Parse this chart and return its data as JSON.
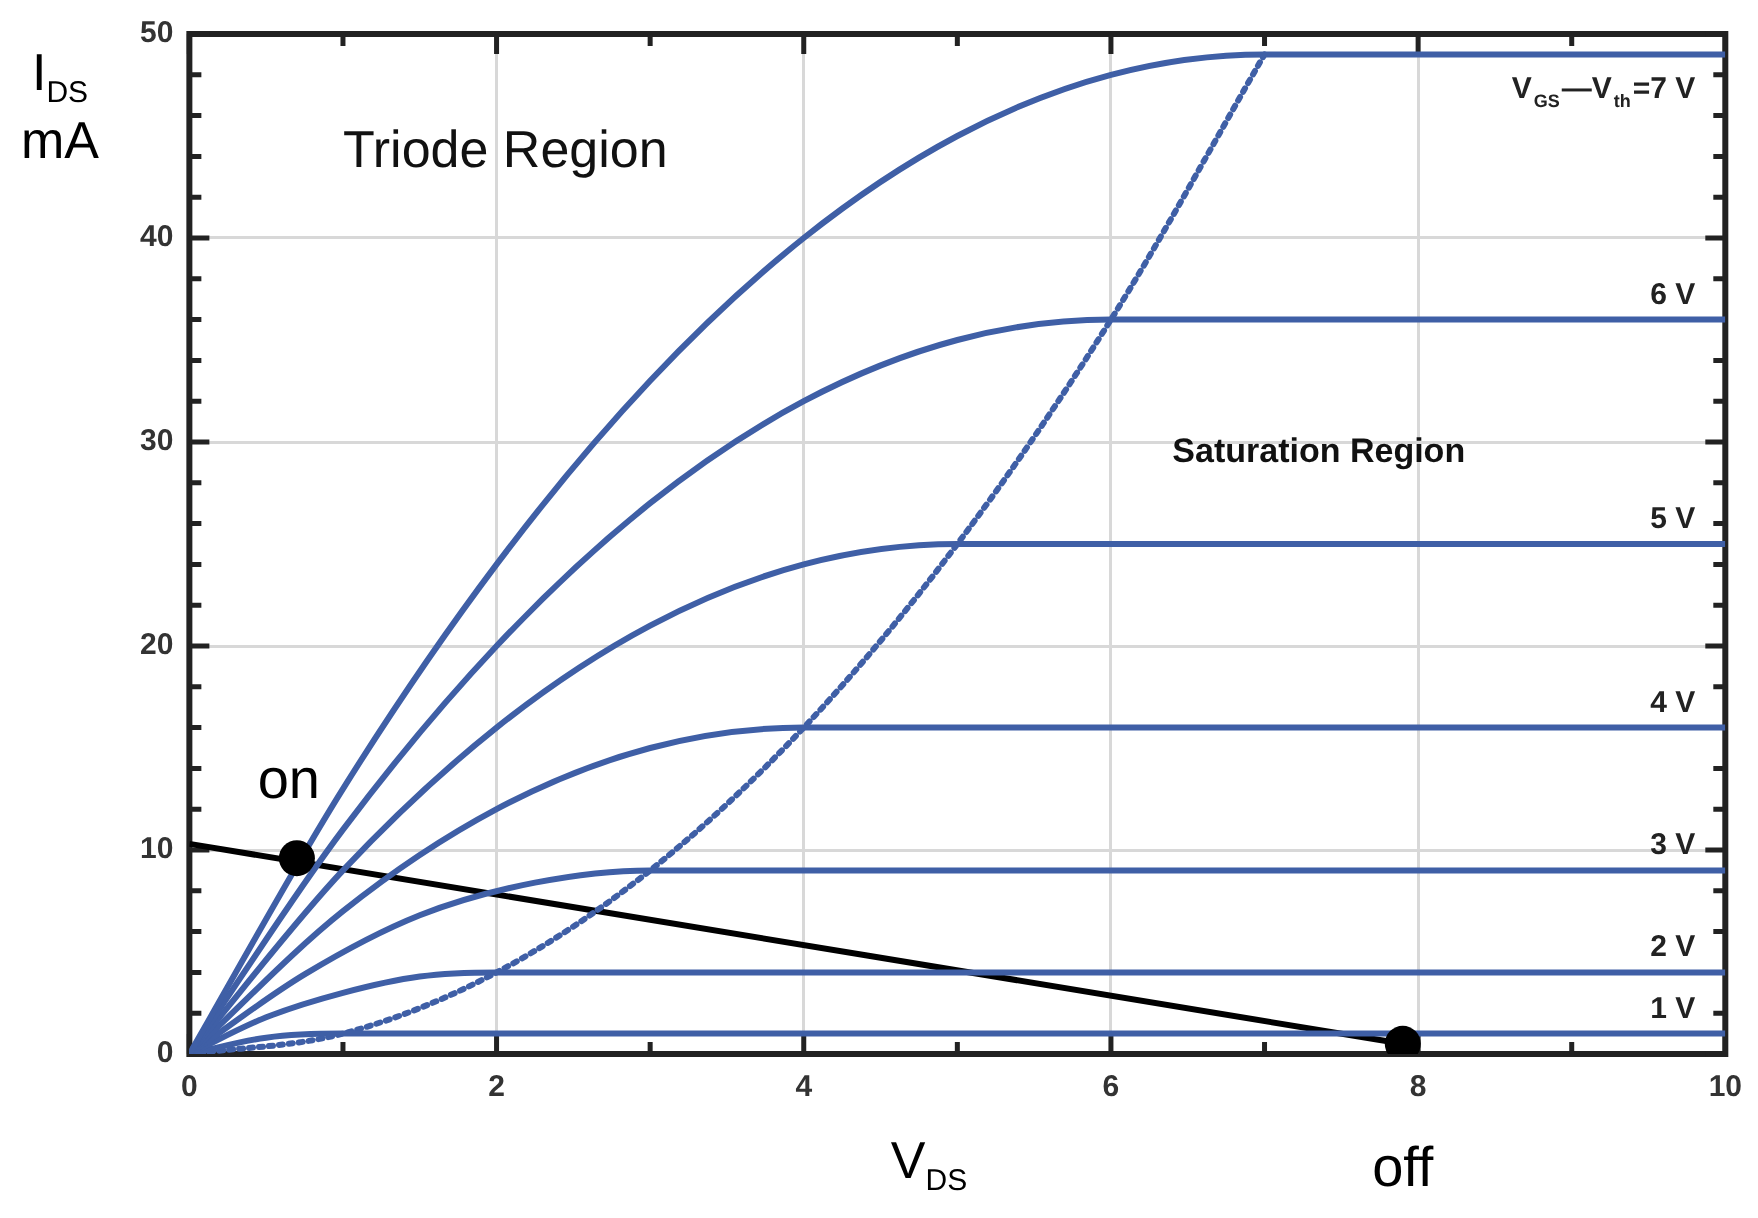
{
  "chart_data": {
    "type": "line",
    "xlabel": "V$_{DS}$",
    "ylabel": "I$_{DS}$ mA",
    "xlim": [
      0,
      10
    ],
    "ylim": [
      0,
      50
    ],
    "xticks": [
      0,
      {
        "value": 1,
        "label": null
      },
      2,
      {
        "value": 3,
        "label": null
      },
      4,
      {
        "value": 5,
        "label": null
      },
      6,
      {
        "value": 7,
        "label": null
      },
      8,
      {
        "value": 9,
        "label": null
      },
      10
    ],
    "yticks": [
      0,
      {
        "value": 2,
        "label": null
      },
      {
        "value": 4,
        "label": null
      },
      {
        "value": 6,
        "label": null
      },
      {
        "value": 8,
        "label": null
      },
      10,
      {
        "value": 12,
        "label": null
      },
      {
        "value": 14,
        "label": null
      },
      {
        "value": 16,
        "label": null
      },
      {
        "value": 18,
        "label": null
      },
      20,
      {
        "value": 22,
        "label": null
      },
      {
        "value": 24,
        "label": null
      },
      {
        "value": 26,
        "label": null
      },
      {
        "value": 28,
        "label": null
      },
      30,
      {
        "value": 32,
        "label": null
      },
      {
        "value": 34,
        "label": null
      },
      {
        "value": 36,
        "label": null
      },
      {
        "value": 38,
        "label": null
      },
      40,
      {
        "value": 42,
        "label": null
      },
      {
        "value": 44,
        "label": null
      },
      {
        "value": 46,
        "label": null
      },
      {
        "value": 48,
        "label": null
      },
      50
    ],
    "grid": true,
    "legend": false,
    "marker": "none",
    "line_style": "solid",
    "series": [
      {
        "name": "V$_{GS}$—V$_{th}$=7 V",
        "color": "#3f5fa6",
        "x": [
          0,
          1,
          2,
          3,
          4,
          5,
          6,
          7,
          10
        ],
        "values": [
          0,
          13,
          24,
          33,
          40,
          45,
          48,
          49,
          49
        ]
      },
      {
        "name": "6 V",
        "color": "#3f5fa6",
        "x": [
          0,
          1,
          2,
          3,
          4,
          5,
          6,
          10
        ],
        "values": [
          0,
          11,
          20,
          27,
          32,
          35,
          36,
          36
        ]
      },
      {
        "name": "5 V",
        "color": "#3f5fa6",
        "x": [
          0,
          1,
          2,
          3,
          4,
          5,
          10
        ],
        "values": [
          0,
          9,
          16,
          21,
          24,
          25,
          25
        ]
      },
      {
        "name": "4 V",
        "color": "#3f5fa6",
        "x": [
          0,
          1,
          2,
          3,
          4,
          10
        ],
        "values": [
          0,
          7,
          12,
          15,
          16,
          16
        ]
      },
      {
        "name": "3 V",
        "color": "#3f5fa6",
        "x": [
          0,
          0.75,
          1.5,
          2.25,
          3,
          10
        ],
        "values": [
          0,
          3.9,
          6.8,
          8.4,
          9,
          9
        ]
      },
      {
        "name": "2 V",
        "color": "#3f5fa6",
        "x": [
          0,
          0.5,
          1,
          1.5,
          2,
          10
        ],
        "values": [
          0,
          1.8,
          3,
          3.8,
          4,
          4
        ]
      },
      {
        "name": "1 V",
        "color": "#3f5fa6",
        "x": [
          0,
          0.5,
          1,
          10
        ],
        "values": [
          0,
          0.8,
          1,
          1
        ]
      },
      {
        "color": "#3f5fa6",
        "line_style": "dotted",
        "x": [
          0,
          1,
          2,
          3,
          4,
          5,
          6,
          7
        ],
        "values": [
          0,
          1,
          4,
          9,
          16,
          25,
          36,
          49
        ]
      },
      {
        "color": "#000000",
        "x": [
          0,
          7.9
        ],
        "values": [
          10.3,
          0.5
        ]
      },
      {
        "type": "scatter",
        "color": "#000000",
        "marker": "circle",
        "x": [
          0.7,
          7.9
        ],
        "values": [
          9.6,
          0.5
        ]
      }
    ],
    "annotations": [
      "Triode Region",
      "Saturation Region",
      {
        "text": "on",
        "x": 0.7,
        "y": 9.6
      },
      {
        "text": "off",
        "x": 7.9,
        "y": 0.5
      }
    ]
  }
}
